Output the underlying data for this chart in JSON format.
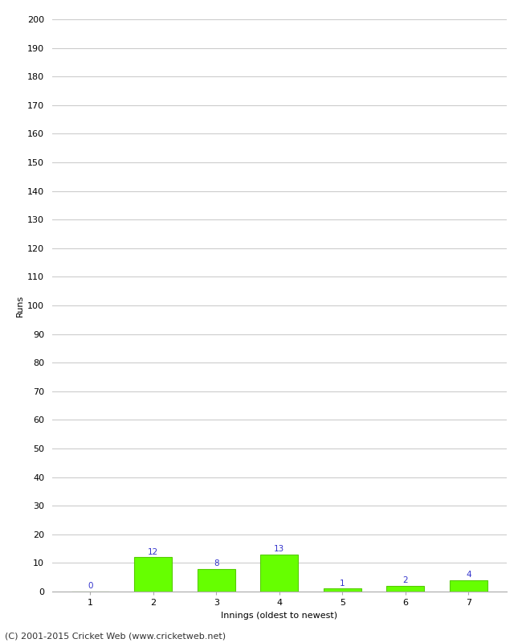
{
  "categories": [
    "1",
    "2",
    "3",
    "4",
    "5",
    "6",
    "7"
  ],
  "values": [
    0,
    12,
    8,
    13,
    1,
    2,
    4
  ],
  "bar_color": "#66ff00",
  "bar_edge_color": "#55cc00",
  "label_color": "#3333cc",
  "xlabel": "Innings (oldest to newest)",
  "ylabel": "Runs",
  "ylim": [
    0,
    200
  ],
  "yticks": [
    0,
    10,
    20,
    30,
    40,
    50,
    60,
    70,
    80,
    90,
    100,
    110,
    120,
    130,
    140,
    150,
    160,
    170,
    180,
    190,
    200
  ],
  "grid_color": "#cccccc",
  "background_color": "#ffffff",
  "footer": "(C) 2001-2015 Cricket Web (www.cricketweb.net)",
  "label_fontsize": 7.5,
  "axis_label_fontsize": 8,
  "tick_fontsize": 8,
  "footer_fontsize": 8
}
